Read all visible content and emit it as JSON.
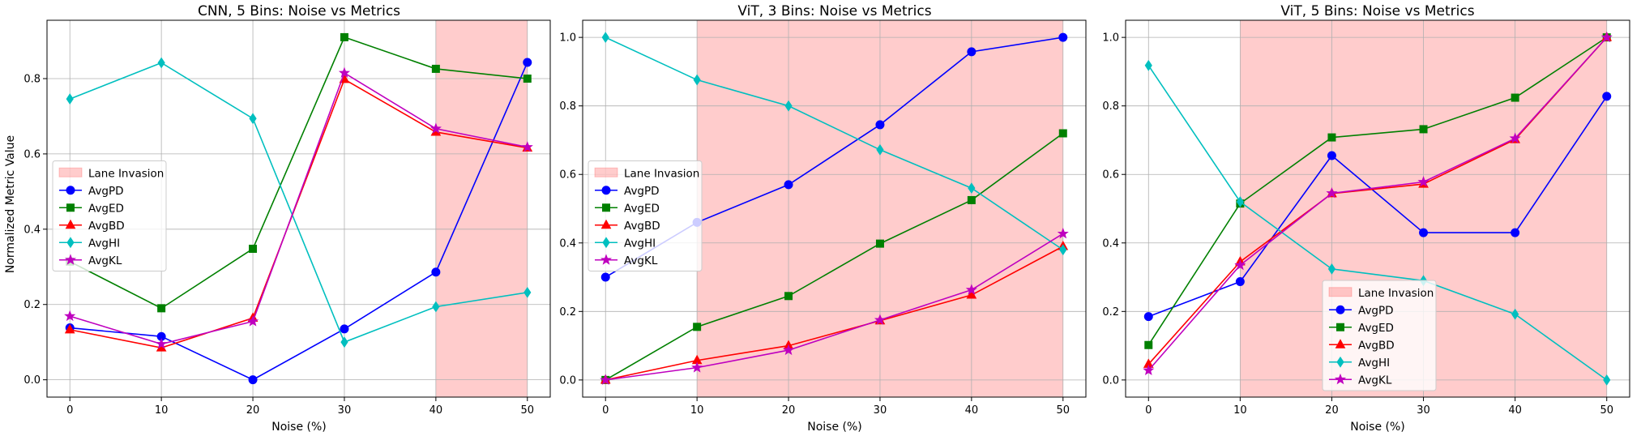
{
  "figure": {
    "ylabel": "Normalized Metric Value",
    "legend_shade_label": "Lane Invasion"
  },
  "chart_data": [
    {
      "type": "line",
      "title": "CNN, 5 Bins: Noise vs Metrics",
      "xlabel": "Noise (%)",
      "ylabel": "Normalized Metric Value",
      "x": [
        0,
        10,
        20,
        30,
        40,
        50
      ],
      "xlim": [
        -2.5,
        52.5
      ],
      "ylim": [
        -0.046,
        0.955
      ],
      "xticks": [
        0,
        10,
        20,
        30,
        40,
        50
      ],
      "yticks": [
        0.0,
        0.2,
        0.4,
        0.6,
        0.8
      ],
      "ytick_format": 1,
      "shade": [
        40,
        50
      ],
      "legend_position": "center-left",
      "grid": true,
      "series": [
        {
          "name": "AvgPD",
          "color": "#0000ff",
          "marker": "circle",
          "values": [
            0.138,
            0.115,
            0.0,
            0.135,
            0.286,
            0.843
          ]
        },
        {
          "name": "AvgED",
          "color": "#008000",
          "marker": "square",
          "values": [
            0.314,
            0.19,
            0.348,
            0.91,
            0.826,
            0.8
          ]
        },
        {
          "name": "AvgBD",
          "color": "#ff0000",
          "marker": "triangle",
          "values": [
            0.133,
            0.085,
            0.164,
            0.798,
            0.658,
            0.616
          ]
        },
        {
          "name": "AvgHI",
          "color": "#00bfbf",
          "marker": "diamond",
          "values": [
            0.746,
            0.842,
            0.694,
            0.1,
            0.194,
            0.232
          ]
        },
        {
          "name": "AvgKL",
          "color": "#bf00bf",
          "marker": "star",
          "values": [
            0.169,
            0.095,
            0.155,
            0.815,
            0.667,
            0.618
          ]
        }
      ]
    },
    {
      "type": "line",
      "title": "ViT, 3 Bins: Noise vs Metrics",
      "xlabel": "Noise (%)",
      "ylabel": "",
      "x": [
        0,
        10,
        20,
        30,
        40,
        50
      ],
      "xlim": [
        -2.5,
        52.5
      ],
      "ylim": [
        -0.05,
        1.05
      ],
      "xticks": [
        0,
        10,
        20,
        30,
        40,
        50
      ],
      "yticks": [
        0.0,
        0.2,
        0.4,
        0.6,
        0.8,
        1.0
      ],
      "ytick_format": 1,
      "shade": [
        10,
        50
      ],
      "legend_position": "center-left",
      "grid": true,
      "series": [
        {
          "name": "AvgPD",
          "color": "#0000ff",
          "marker": "circle",
          "values": [
            0.3,
            0.46,
            0.57,
            0.745,
            0.958,
            1.0
          ]
        },
        {
          "name": "AvgED",
          "color": "#008000",
          "marker": "square",
          "values": [
            0.0,
            0.155,
            0.245,
            0.398,
            0.525,
            0.72
          ]
        },
        {
          "name": "AvgBD",
          "color": "#ff0000",
          "marker": "triangle",
          "values": [
            0.0,
            0.057,
            0.1,
            0.173,
            0.248,
            0.39
          ]
        },
        {
          "name": "AvgHI",
          "color": "#00bfbf",
          "marker": "diamond",
          "values": [
            1.0,
            0.876,
            0.8,
            0.672,
            0.56,
            0.38
          ]
        },
        {
          "name": "AvgKL",
          "color": "#bf00bf",
          "marker": "star",
          "values": [
            0.0,
            0.036,
            0.087,
            0.175,
            0.263,
            0.427
          ]
        }
      ]
    },
    {
      "type": "line",
      "title": "ViT, 5 Bins: Noise vs Metrics",
      "xlabel": "Noise (%)",
      "ylabel": "",
      "x": [
        0,
        10,
        20,
        30,
        40,
        50
      ],
      "xlim": [
        -2.5,
        52.5
      ],
      "ylim": [
        -0.05,
        1.05
      ],
      "xticks": [
        0,
        10,
        20,
        30,
        40,
        50
      ],
      "yticks": [
        0.0,
        0.2,
        0.4,
        0.6,
        0.8,
        1.0
      ],
      "ytick_format": 1,
      "shade": [
        10,
        50
      ],
      "legend_position": "lower-center",
      "grid": true,
      "series": [
        {
          "name": "AvgPD",
          "color": "#0000ff",
          "marker": "circle",
          "values": [
            0.185,
            0.287,
            0.655,
            0.43,
            0.43,
            0.828
          ]
        },
        {
          "name": "AvgED",
          "color": "#008000",
          "marker": "square",
          "values": [
            0.102,
            0.515,
            0.708,
            0.732,
            0.824,
            1.0
          ]
        },
        {
          "name": "AvgBD",
          "color": "#ff0000",
          "marker": "triangle",
          "values": [
            0.046,
            0.345,
            0.544,
            0.572,
            0.702,
            1.0
          ]
        },
        {
          "name": "AvgHI",
          "color": "#00bfbf",
          "marker": "diamond",
          "values": [
            0.918,
            0.52,
            0.324,
            0.29,
            0.192,
            0.0
          ]
        },
        {
          "name": "AvgKL",
          "color": "#bf00bf",
          "marker": "star",
          "values": [
            0.028,
            0.335,
            0.545,
            0.578,
            0.705,
            1.0
          ]
        }
      ]
    }
  ]
}
